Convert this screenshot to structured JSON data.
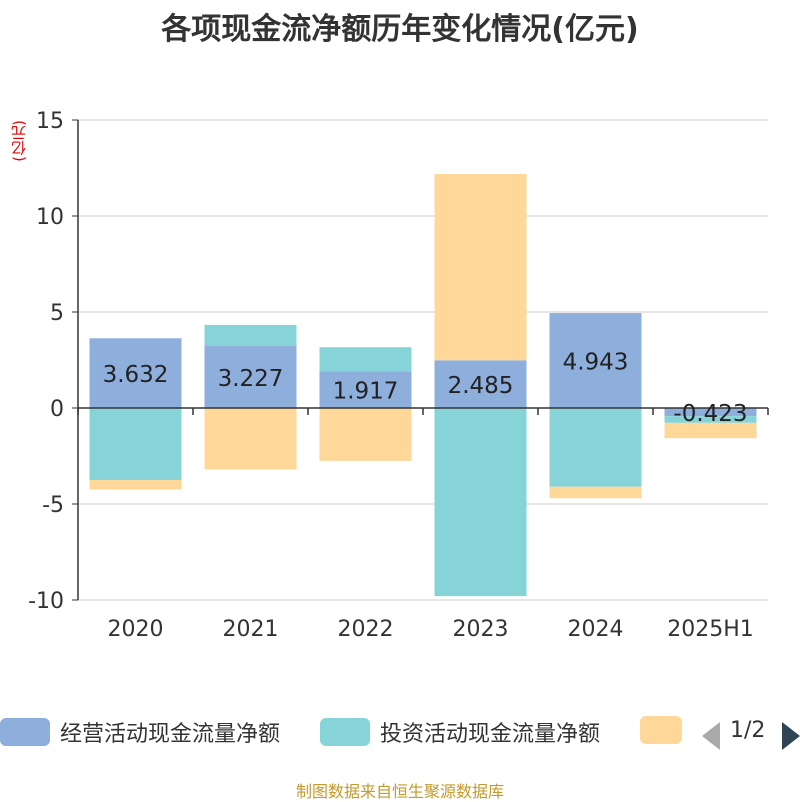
{
  "title": "各项现金流净额历年变化情况(亿元)",
  "unit_label": "(亿元)",
  "source": "制图数据来自恒生聚源数据库",
  "legend_pager": "1/2",
  "colors": {
    "operating": "#8eaedc",
    "investing": "#87d4d8",
    "financing": "#ffd899"
  },
  "chart_data": {
    "type": "bar",
    "stacked": true,
    "title": "各项现金流净额历年变化情况(亿元)",
    "ylabel": "(亿元)",
    "ylim": [
      -10,
      15
    ],
    "yticks": [
      -10,
      -5,
      0,
      5,
      10,
      15
    ],
    "categories": [
      "2020",
      "2021",
      "2022",
      "2023",
      "2024",
      "2025H1"
    ],
    "series": [
      {
        "name": "经营活动现金流量净额",
        "values": [
          3.632,
          3.227,
          1.917,
          2.485,
          4.943,
          -0.423
        ]
      },
      {
        "name": "投资活动现金流量净额",
        "values": [
          -3.75,
          1.1,
          1.25,
          -9.8,
          -4.1,
          -0.35
        ]
      },
      {
        "name": "",
        "values": [
          -0.5,
          -3.2,
          -2.75,
          9.7,
          -0.6,
          -0.8
        ]
      }
    ],
    "data_labels": [
      "3.632",
      "3.227",
      "1.917",
      "2.485",
      "4.943",
      "-0.423"
    ],
    "grid": true,
    "legend": "bottom"
  }
}
